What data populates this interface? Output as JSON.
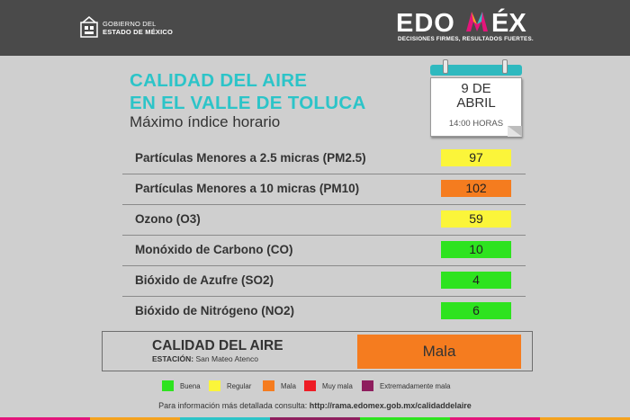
{
  "header": {
    "gov_line1": "GOBIERNO DEL",
    "gov_line2": "ESTADO DE MÉXICO",
    "brand": "EDOMÉX",
    "tagline": "DECISIONES FIRMES, RESULTADOS FUERTES."
  },
  "title": {
    "line1": "CALIDAD DEL AIRE",
    "line2": "EN EL VALLE DE TOLUCA",
    "subtitle": "Máximo índice horario"
  },
  "calendar": {
    "day": "9 DE",
    "month": "ABRIL",
    "time": "14:00 HORAS"
  },
  "pollutants": [
    {
      "label": "Partículas Menores a 2.5 micras (PM2.5)",
      "value": "97",
      "color": "#fbf53a"
    },
    {
      "label": "Partículas Menores a 10 micras (PM10)",
      "value": "102",
      "color": "#f57c1f"
    },
    {
      "label": "Ozono (O3)",
      "value": "59",
      "color": "#fbf53a"
    },
    {
      "label": "Monóxido de Carbono (CO)",
      "value": "10",
      "color": "#2ee31f"
    },
    {
      "label": "Bióxido de Azufre (SO2)",
      "value": "4",
      "color": "#2ee31f"
    },
    {
      "label": "Bióxido de Nitrógeno (NO2)",
      "value": "6",
      "color": "#2ee31f"
    }
  ],
  "air_quality": {
    "title": "CALIDAD DEL AIRE",
    "station_label": "ESTACIÓN:",
    "station": "San Mateo Atenco",
    "value": "Mala",
    "color": "#f57c1f"
  },
  "legend": [
    {
      "label": "Buena",
      "color": "#2ee31f"
    },
    {
      "label": "Regular",
      "color": "#fbf53a"
    },
    {
      "label": "Mala",
      "color": "#f57c1f"
    },
    {
      "label": "Muy mala",
      "color": "#ee1c25"
    },
    {
      "label": "Extremadamente mala",
      "color": "#8e1e5e"
    }
  ],
  "footer": {
    "text": "Para información más detallada consulta:",
    "url": "http://rama.edomex.gob.mx/calidaddelaire"
  }
}
